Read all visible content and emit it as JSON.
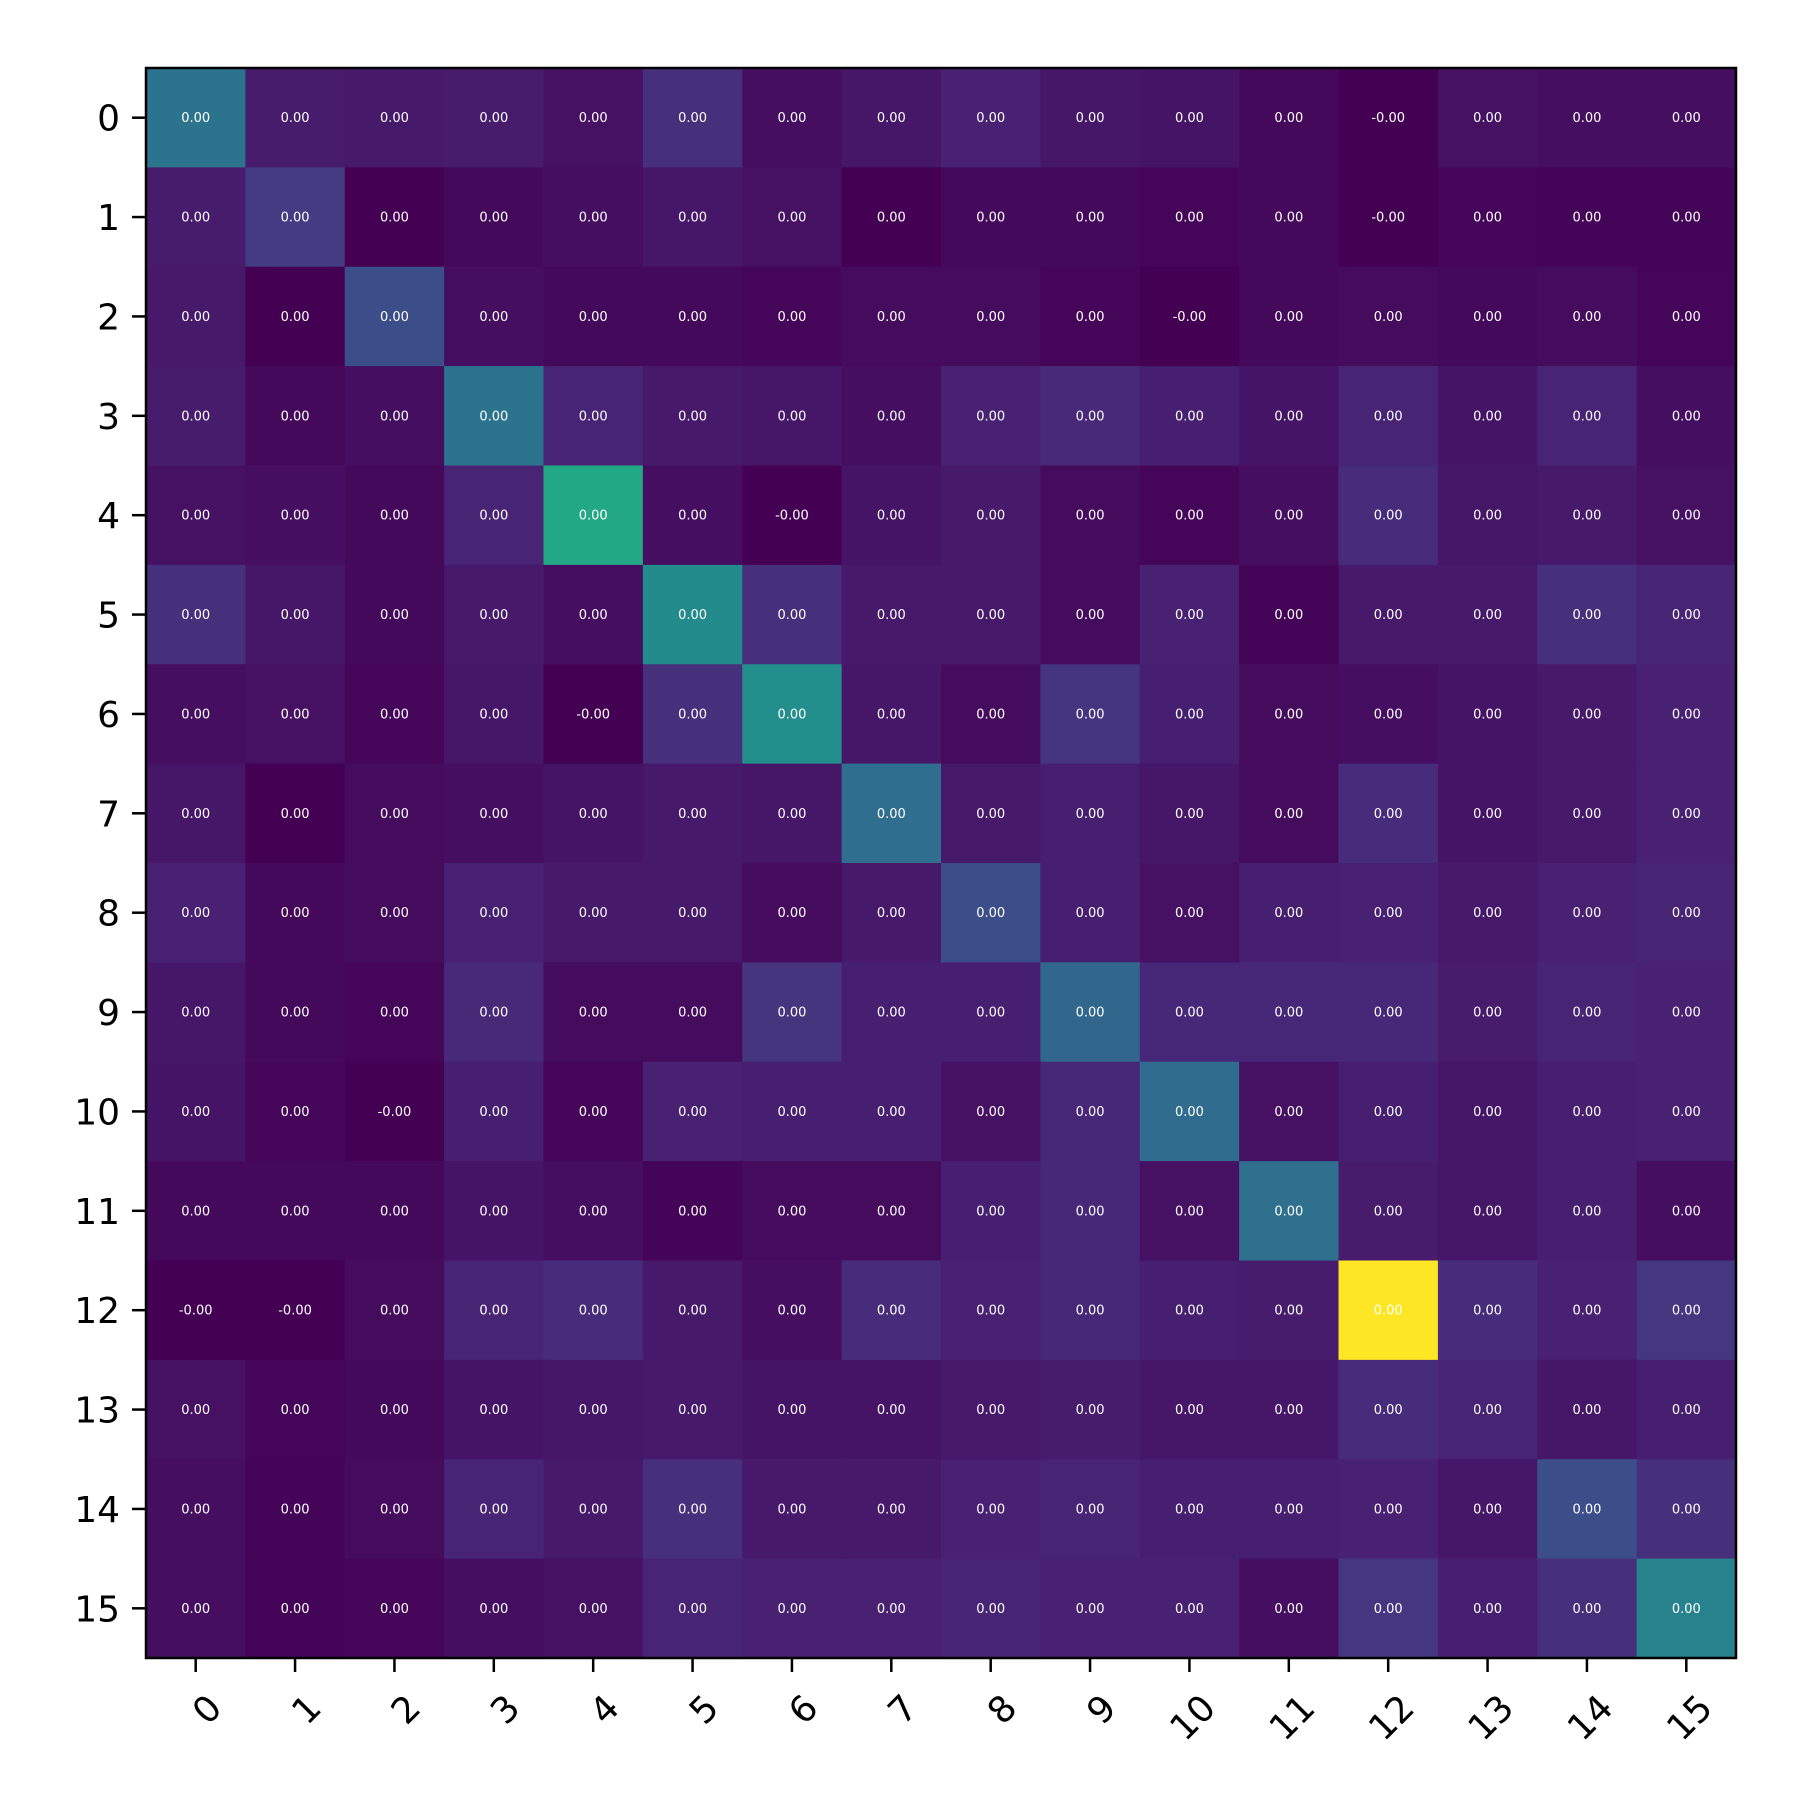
{
  "chart_data": {
    "type": "heatmap",
    "title": "",
    "xlabel": "",
    "ylabel": "",
    "x_categories": [
      "0",
      "1",
      "2",
      "3",
      "4",
      "5",
      "6",
      "7",
      "8",
      "9",
      "10",
      "11",
      "12",
      "13",
      "14",
      "15"
    ],
    "y_categories": [
      "0",
      "1",
      "2",
      "3",
      "4",
      "5",
      "6",
      "7",
      "8",
      "9",
      "10",
      "11",
      "12",
      "13",
      "14",
      "15"
    ],
    "colormap": "viridis",
    "color_range": [
      0,
      1
    ],
    "intensity": [
      [
        0.48,
        0.1,
        0.09,
        0.1,
        0.06,
        0.17,
        0.05,
        0.08,
        0.12,
        0.08,
        0.07,
        0.03,
        0.0,
        0.06,
        0.05,
        0.05
      ],
      [
        0.1,
        0.22,
        0.0,
        0.03,
        0.05,
        0.08,
        0.06,
        0.0,
        0.03,
        0.03,
        0.02,
        0.03,
        0.0,
        0.02,
        0.01,
        0.01
      ],
      [
        0.09,
        0.0,
        0.3,
        0.05,
        0.03,
        0.03,
        0.02,
        0.04,
        0.04,
        0.02,
        0.0,
        0.03,
        0.04,
        0.03,
        0.04,
        0.02
      ],
      [
        0.1,
        0.03,
        0.05,
        0.48,
        0.13,
        0.09,
        0.08,
        0.05,
        0.12,
        0.15,
        0.11,
        0.07,
        0.13,
        0.07,
        0.13,
        0.05
      ],
      [
        0.06,
        0.05,
        0.03,
        0.13,
        0.75,
        0.05,
        0.0,
        0.07,
        0.09,
        0.04,
        0.02,
        0.05,
        0.16,
        0.08,
        0.09,
        0.06
      ],
      [
        0.17,
        0.08,
        0.03,
        0.09,
        0.05,
        0.6,
        0.17,
        0.09,
        0.09,
        0.04,
        0.12,
        0.01,
        0.09,
        0.09,
        0.17,
        0.13
      ],
      [
        0.05,
        0.06,
        0.02,
        0.08,
        0.0,
        0.17,
        0.62,
        0.08,
        0.04,
        0.19,
        0.11,
        0.04,
        0.05,
        0.07,
        0.09,
        0.12
      ],
      [
        0.08,
        0.0,
        0.04,
        0.05,
        0.07,
        0.09,
        0.08,
        0.45,
        0.09,
        0.11,
        0.08,
        0.04,
        0.16,
        0.07,
        0.09,
        0.12
      ],
      [
        0.12,
        0.03,
        0.04,
        0.12,
        0.09,
        0.09,
        0.04,
        0.09,
        0.3,
        0.11,
        0.06,
        0.11,
        0.12,
        0.09,
        0.12,
        0.13
      ],
      [
        0.08,
        0.03,
        0.02,
        0.15,
        0.04,
        0.04,
        0.19,
        0.11,
        0.11,
        0.42,
        0.14,
        0.14,
        0.14,
        0.1,
        0.13,
        0.12
      ],
      [
        0.07,
        0.02,
        0.0,
        0.11,
        0.02,
        0.12,
        0.11,
        0.11,
        0.06,
        0.14,
        0.44,
        0.06,
        0.11,
        0.08,
        0.11,
        0.12
      ],
      [
        0.03,
        0.03,
        0.03,
        0.07,
        0.05,
        0.01,
        0.04,
        0.04,
        0.11,
        0.14,
        0.06,
        0.46,
        0.1,
        0.08,
        0.11,
        0.05
      ],
      [
        0.0,
        0.0,
        0.04,
        0.13,
        0.16,
        0.09,
        0.05,
        0.16,
        0.12,
        0.14,
        0.11,
        0.1,
        1.0,
        0.16,
        0.12,
        0.2
      ],
      [
        0.06,
        0.02,
        0.03,
        0.07,
        0.08,
        0.09,
        0.07,
        0.07,
        0.09,
        0.1,
        0.08,
        0.08,
        0.16,
        0.13,
        0.08,
        0.11
      ],
      [
        0.05,
        0.01,
        0.04,
        0.13,
        0.09,
        0.17,
        0.09,
        0.09,
        0.12,
        0.13,
        0.11,
        0.11,
        0.12,
        0.08,
        0.3,
        0.17
      ],
      [
        0.05,
        0.01,
        0.02,
        0.05,
        0.06,
        0.13,
        0.12,
        0.12,
        0.13,
        0.12,
        0.12,
        0.05,
        0.2,
        0.11,
        0.17,
        0.55
      ]
    ],
    "cell_labels": [
      [
        "0.00",
        "0.00",
        "0.00",
        "0.00",
        "0.00",
        "0.00",
        "0.00",
        "0.00",
        "0.00",
        "0.00",
        "0.00",
        "0.00",
        "-0.00",
        "0.00",
        "0.00",
        "0.00"
      ],
      [
        "0.00",
        "0.00",
        "0.00",
        "0.00",
        "0.00",
        "0.00",
        "0.00",
        "0.00",
        "0.00",
        "0.00",
        "0.00",
        "0.00",
        "-0.00",
        "0.00",
        "0.00",
        "0.00"
      ],
      [
        "0.00",
        "0.00",
        "0.00",
        "0.00",
        "0.00",
        "0.00",
        "0.00",
        "0.00",
        "0.00",
        "0.00",
        "-0.00",
        "0.00",
        "0.00",
        "0.00",
        "0.00",
        "0.00"
      ],
      [
        "0.00",
        "0.00",
        "0.00",
        "0.00",
        "0.00",
        "0.00",
        "0.00",
        "0.00",
        "0.00",
        "0.00",
        "0.00",
        "0.00",
        "0.00",
        "0.00",
        "0.00",
        "0.00"
      ],
      [
        "0.00",
        "0.00",
        "0.00",
        "0.00",
        "0.00",
        "0.00",
        "-0.00",
        "0.00",
        "0.00",
        "0.00",
        "0.00",
        "0.00",
        "0.00",
        "0.00",
        "0.00",
        "0.00"
      ],
      [
        "0.00",
        "0.00",
        "0.00",
        "0.00",
        "0.00",
        "0.00",
        "0.00",
        "0.00",
        "0.00",
        "0.00",
        "0.00",
        "0.00",
        "0.00",
        "0.00",
        "0.00",
        "0.00"
      ],
      [
        "0.00",
        "0.00",
        "0.00",
        "0.00",
        "-0.00",
        "0.00",
        "0.00",
        "0.00",
        "0.00",
        "0.00",
        "0.00",
        "0.00",
        "0.00",
        "0.00",
        "0.00",
        "0.00"
      ],
      [
        "0.00",
        "0.00",
        "0.00",
        "0.00",
        "0.00",
        "0.00",
        "0.00",
        "0.00",
        "0.00",
        "0.00",
        "0.00",
        "0.00",
        "0.00",
        "0.00",
        "0.00",
        "0.00"
      ],
      [
        "0.00",
        "0.00",
        "0.00",
        "0.00",
        "0.00",
        "0.00",
        "0.00",
        "0.00",
        "0.00",
        "0.00",
        "0.00",
        "0.00",
        "0.00",
        "0.00",
        "0.00",
        "0.00"
      ],
      [
        "0.00",
        "0.00",
        "0.00",
        "0.00",
        "0.00",
        "0.00",
        "0.00",
        "0.00",
        "0.00",
        "0.00",
        "0.00",
        "0.00",
        "0.00",
        "0.00",
        "0.00",
        "0.00"
      ],
      [
        "0.00",
        "0.00",
        "-0.00",
        "0.00",
        "0.00",
        "0.00",
        "0.00",
        "0.00",
        "0.00",
        "0.00",
        "0.00",
        "0.00",
        "0.00",
        "0.00",
        "0.00",
        "0.00"
      ],
      [
        "0.00",
        "0.00",
        "0.00",
        "0.00",
        "0.00",
        "0.00",
        "0.00",
        "0.00",
        "0.00",
        "0.00",
        "0.00",
        "0.00",
        "0.00",
        "0.00",
        "0.00",
        "0.00"
      ],
      [
        "-0.00",
        "-0.00",
        "0.00",
        "0.00",
        "0.00",
        "0.00",
        "0.00",
        "0.00",
        "0.00",
        "0.00",
        "0.00",
        "0.00",
        "0.00",
        "0.00",
        "0.00",
        "0.00"
      ],
      [
        "0.00",
        "0.00",
        "0.00",
        "0.00",
        "0.00",
        "0.00",
        "0.00",
        "0.00",
        "0.00",
        "0.00",
        "0.00",
        "0.00",
        "0.00",
        "0.00",
        "0.00",
        "0.00"
      ],
      [
        "0.00",
        "0.00",
        "0.00",
        "0.00",
        "0.00",
        "0.00",
        "0.00",
        "0.00",
        "0.00",
        "0.00",
        "0.00",
        "0.00",
        "0.00",
        "0.00",
        "0.00",
        "0.00"
      ],
      [
        "0.00",
        "0.00",
        "0.00",
        "0.00",
        "0.00",
        "0.00",
        "0.00",
        "0.00",
        "0.00",
        "0.00",
        "0.00",
        "0.00",
        "0.00",
        "0.00",
        "0.00",
        "0.00"
      ]
    ],
    "grid": false,
    "legend": "none"
  }
}
